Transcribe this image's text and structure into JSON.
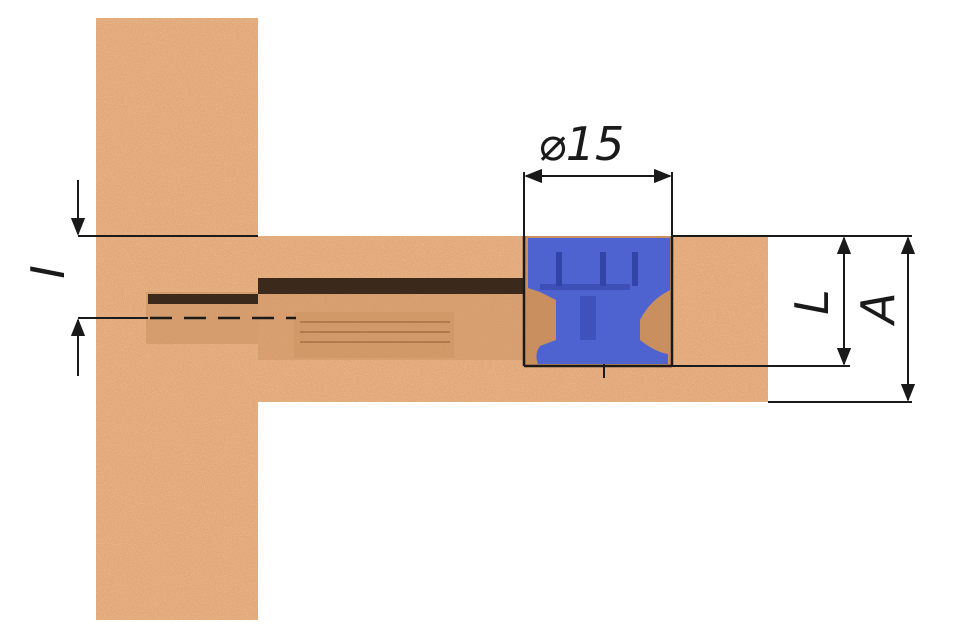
{
  "diagram": {
    "colors": {
      "particleboard": "#E2A878",
      "particleboard_dark": "#C98F5E",
      "cam_housing": "#4F63D0",
      "cam_housing_dark": "#3344A8",
      "line": "#1a1a1a",
      "background": "#ffffff"
    },
    "labels": {
      "diameter": "⌀15",
      "dim_I": "I",
      "dim_L": "L",
      "dim_A": "A"
    }
  }
}
